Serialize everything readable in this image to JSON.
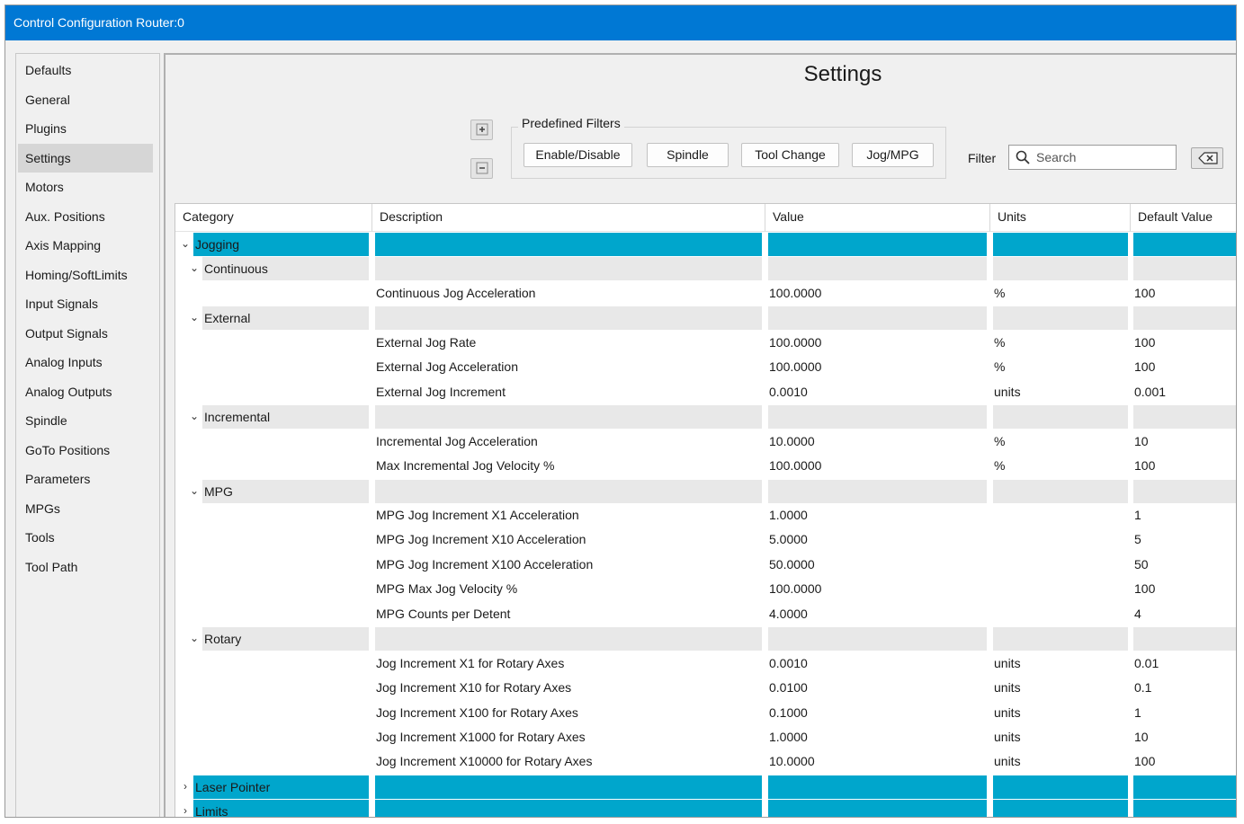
{
  "window": {
    "title": "Control Configuration Router:0"
  },
  "sidebar": {
    "active": "Settings",
    "items": [
      "Defaults",
      "General",
      "Plugins",
      "Settings",
      "Motors",
      "Aux. Positions",
      "Axis Mapping",
      "Homing/SoftLimits",
      "Input Signals",
      "Output Signals",
      "Analog Inputs",
      "Analog Outputs",
      "Spindle",
      "GoTo Positions",
      "Parameters",
      "MPGs",
      "Tools",
      "Tool Path"
    ]
  },
  "main": {
    "title": "Settings",
    "expand_icon": "plus-box-icon",
    "collapse_icon": "minus-box-icon",
    "predefined_filters": {
      "legend": "Predefined Filters",
      "buttons": [
        "Enable/Disable",
        "Spindle",
        "Tool Change",
        "Jog/MPG"
      ]
    },
    "filter_label": "Filter",
    "search": {
      "placeholder": "Search",
      "value": "",
      "icon": "search-icon"
    },
    "clear_icon": "backspace-clear-icon"
  },
  "table": {
    "columns": [
      "Category",
      "Description",
      "Value",
      "Units",
      "Default Value"
    ],
    "rows": [
      {
        "kind": "group",
        "level": 0,
        "expanded": true,
        "label": "Jogging",
        "style": "highlight"
      },
      {
        "kind": "group",
        "level": 1,
        "expanded": true,
        "label": "Continuous",
        "style": "grey"
      },
      {
        "kind": "setting",
        "description": "Continuous Jog Acceleration",
        "value": "100.0000",
        "units": "%",
        "default": "100"
      },
      {
        "kind": "group",
        "level": 1,
        "expanded": true,
        "label": "External",
        "style": "grey"
      },
      {
        "kind": "setting",
        "description": "External Jog Rate",
        "value": "100.0000",
        "units": "%",
        "default": "100"
      },
      {
        "kind": "setting",
        "description": "External Jog Acceleration",
        "value": "100.0000",
        "units": "%",
        "default": "100"
      },
      {
        "kind": "setting",
        "description": "External Jog Increment",
        "value": "0.0010",
        "units": "units",
        "default": "0.001"
      },
      {
        "kind": "group",
        "level": 1,
        "expanded": true,
        "label": "Incremental",
        "style": "grey"
      },
      {
        "kind": "setting",
        "description": "Incremental Jog Acceleration",
        "value": "10.0000",
        "units": "%",
        "default": "10"
      },
      {
        "kind": "setting",
        "description": "Max Incremental Jog Velocity %",
        "value": "100.0000",
        "units": "%",
        "default": "100"
      },
      {
        "kind": "group",
        "level": 1,
        "expanded": true,
        "label": "MPG",
        "style": "grey"
      },
      {
        "kind": "setting",
        "description": "MPG Jog Increment X1 Acceleration",
        "value": "1.0000",
        "units": "",
        "default": "1"
      },
      {
        "kind": "setting",
        "description": "MPG Jog Increment X10 Acceleration",
        "value": "5.0000",
        "units": "",
        "default": "5"
      },
      {
        "kind": "setting",
        "description": "MPG Jog Increment X100 Acceleration",
        "value": "50.0000",
        "units": "",
        "default": "50"
      },
      {
        "kind": "setting",
        "description": "MPG Max Jog Velocity %",
        "value": "100.0000",
        "units": "",
        "default": "100"
      },
      {
        "kind": "setting",
        "description": "MPG Counts per Detent",
        "value": "4.0000",
        "units": "",
        "default": "4"
      },
      {
        "kind": "group",
        "level": 1,
        "expanded": true,
        "label": "Rotary",
        "style": "grey"
      },
      {
        "kind": "setting",
        "description": "Jog Increment X1 for Rotary Axes",
        "value": "0.0010",
        "units": "units",
        "default": "0.01"
      },
      {
        "kind": "setting",
        "description": "Jog Increment X10 for Rotary Axes",
        "value": "0.0100",
        "units": "units",
        "default": "0.1"
      },
      {
        "kind": "setting",
        "description": "Jog Increment X100 for Rotary Axes",
        "value": "0.1000",
        "units": "units",
        "default": "1"
      },
      {
        "kind": "setting",
        "description": "Jog Increment X1000 for Rotary Axes",
        "value": "1.0000",
        "units": "units",
        "default": "10"
      },
      {
        "kind": "setting",
        "description": "Jog Increment X10000 for Rotary Axes",
        "value": "10.0000",
        "units": "units",
        "default": "100"
      },
      {
        "kind": "group",
        "level": 0,
        "expanded": false,
        "label": "Laser Pointer",
        "style": "highlight"
      },
      {
        "kind": "group",
        "level": 0,
        "expanded": false,
        "label": "Limits",
        "style": "highlight"
      }
    ]
  },
  "colors": {
    "titlebar": "#0078d4",
    "highlight": "#00a6cc",
    "group_grey": "#e8e8e8",
    "sidebar_active": "#d6d6d6"
  }
}
